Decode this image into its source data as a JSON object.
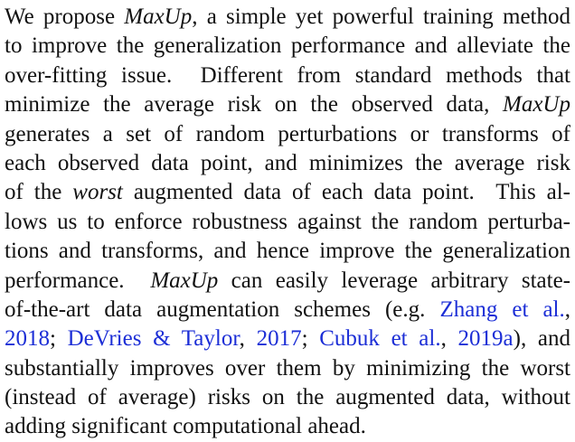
{
  "abstract": {
    "lines": [
      [
        {
          "t": "We propose ",
          "s": "n"
        },
        {
          "t": "MaxUp",
          "s": "i"
        },
        {
          "t": ", a simple yet powerful training method",
          "s": "n"
        }
      ],
      [
        {
          "t": "to improve the generalization performance and alleviate the",
          "s": "n"
        }
      ],
      [
        {
          "t": "over-fitting issue.  Different from standard methods that",
          "s": "n"
        }
      ],
      [
        {
          "t": "minimize the average risk on the observed data, ",
          "s": "n"
        },
        {
          "t": "MaxUp",
          "s": "i"
        }
      ],
      [
        {
          "t": "generates a set of random perturbations or transforms of",
          "s": "n"
        }
      ],
      [
        {
          "t": "each observed data point, and minimizes the average risk",
          "s": "n"
        }
      ],
      [
        {
          "t": "of the ",
          "s": "n"
        },
        {
          "t": "worst",
          "s": "i"
        },
        {
          "t": " augmented data of each data point.  This al-",
          "s": "n"
        }
      ],
      [
        {
          "t": "lows us to enforce robustness against the random perturba-",
          "s": "n"
        }
      ],
      [
        {
          "t": "tions and transforms, and hence improve the generalization",
          "s": "n"
        }
      ],
      [
        {
          "t": "performance.  ",
          "s": "n"
        },
        {
          "t": "MaxUp",
          "s": "i"
        },
        {
          "t": " can easily leverage arbitrary state-",
          "s": "n"
        }
      ],
      [
        {
          "t": "of-the-art data augmentation schemes (e.g. ",
          "s": "n"
        },
        {
          "t": "Zhang et al.",
          "s": "c"
        },
        {
          "t": ",",
          "s": "n"
        }
      ],
      [
        {
          "t": "2018",
          "s": "c"
        },
        {
          "t": "; ",
          "s": "n"
        },
        {
          "t": "DeVries & Taylor",
          "s": "c"
        },
        {
          "t": ", ",
          "s": "n"
        },
        {
          "t": "2017",
          "s": "c"
        },
        {
          "t": "; ",
          "s": "n"
        },
        {
          "t": "Cubuk et al.",
          "s": "c"
        },
        {
          "t": ", ",
          "s": "n"
        },
        {
          "t": "2019a",
          "s": "c"
        },
        {
          "t": "), and",
          "s": "n"
        }
      ],
      [
        {
          "t": "substantially improves over them by minimizing the worst",
          "s": "n"
        }
      ],
      [
        {
          "t": "(instead of average) risks on the augmented data, without",
          "s": "n"
        }
      ],
      [
        {
          "t": "adding significant computational ahead.",
          "s": "n"
        }
      ]
    ]
  }
}
